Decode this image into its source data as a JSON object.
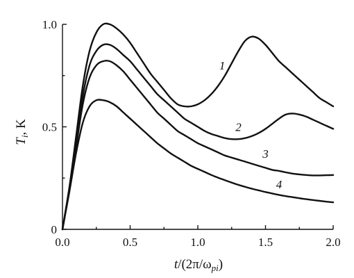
{
  "chart_data": {
    "type": "line",
    "xlabel": {
      "t": "t",
      "paren_open": "/(2π/ω",
      "sub": "pi",
      "paren_close": ")"
    },
    "ylabel": {
      "t": "T",
      "sub": "i",
      "unit": ", K"
    },
    "xlim": [
      0.0,
      2.0
    ],
    "ylim": [
      0.0,
      1.0
    ],
    "xticks": [
      0.0,
      0.5,
      1.0,
      1.5,
      2.0
    ],
    "xtick_labels": [
      "0.0",
      "0.5",
      "1.0",
      "1.5",
      "2.0"
    ],
    "yticks": [
      0.0,
      0.5,
      1.0
    ],
    "ytick_labels": [
      "0",
      "0.5",
      "1.0"
    ],
    "grid": false,
    "series": [
      {
        "name": "1",
        "label_at": [
          1.18,
          0.78
        ],
        "x": [
          0,
          0.05,
          0.1,
          0.15,
          0.2,
          0.25,
          0.3,
          0.35,
          0.4,
          0.45,
          0.5,
          0.55,
          0.6,
          0.65,
          0.7,
          0.75,
          0.8,
          0.85,
          0.9,
          0.95,
          1.0,
          1.05,
          1.1,
          1.15,
          1.2,
          1.25,
          1.3,
          1.35,
          1.4,
          1.45,
          1.5,
          1.55,
          1.6,
          1.65,
          1.7,
          1.75,
          1.8,
          1.85,
          1.9,
          1.95,
          2.0
        ],
        "y": [
          0,
          0.2,
          0.45,
          0.7,
          0.87,
          0.96,
          1.0,
          1.0,
          0.98,
          0.95,
          0.91,
          0.86,
          0.81,
          0.76,
          0.72,
          0.68,
          0.64,
          0.61,
          0.6,
          0.6,
          0.61,
          0.63,
          0.66,
          0.7,
          0.75,
          0.81,
          0.87,
          0.92,
          0.94,
          0.93,
          0.9,
          0.86,
          0.82,
          0.79,
          0.76,
          0.73,
          0.7,
          0.67,
          0.64,
          0.62,
          0.6
        ]
      },
      {
        "name": "2",
        "label_at": [
          1.3,
          0.48
        ],
        "x": [
          0,
          0.05,
          0.1,
          0.15,
          0.2,
          0.25,
          0.3,
          0.35,
          0.4,
          0.45,
          0.5,
          0.55,
          0.6,
          0.65,
          0.7,
          0.75,
          0.8,
          0.85,
          0.9,
          0.95,
          1.0,
          1.05,
          1.1,
          1.15,
          1.2,
          1.25,
          1.3,
          1.35,
          1.4,
          1.45,
          1.5,
          1.55,
          1.6,
          1.65,
          1.7,
          1.75,
          1.8,
          1.85,
          1.9,
          1.95,
          2.0
        ],
        "y": [
          0,
          0.2,
          0.42,
          0.65,
          0.8,
          0.87,
          0.9,
          0.9,
          0.88,
          0.85,
          0.82,
          0.78,
          0.74,
          0.7,
          0.66,
          0.63,
          0.6,
          0.57,
          0.54,
          0.52,
          0.5,
          0.48,
          0.465,
          0.455,
          0.445,
          0.44,
          0.44,
          0.445,
          0.455,
          0.47,
          0.49,
          0.515,
          0.54,
          0.56,
          0.565,
          0.56,
          0.55,
          0.535,
          0.52,
          0.505,
          0.49
        ]
      },
      {
        "name": "3",
        "label_at": [
          1.5,
          0.35
        ],
        "x": [
          0,
          0.05,
          0.1,
          0.15,
          0.2,
          0.25,
          0.3,
          0.35,
          0.4,
          0.45,
          0.5,
          0.55,
          0.6,
          0.65,
          0.7,
          0.75,
          0.8,
          0.85,
          0.9,
          0.95,
          1.0,
          1.05,
          1.1,
          1.15,
          1.2,
          1.25,
          1.3,
          1.35,
          1.4,
          1.45,
          1.5,
          1.55,
          1.6,
          1.65,
          1.7,
          1.75,
          1.8,
          1.85,
          1.9,
          1.95,
          2.0
        ],
        "y": [
          0,
          0.19,
          0.4,
          0.61,
          0.74,
          0.8,
          0.82,
          0.82,
          0.8,
          0.77,
          0.73,
          0.69,
          0.65,
          0.61,
          0.57,
          0.54,
          0.51,
          0.48,
          0.46,
          0.44,
          0.42,
          0.405,
          0.39,
          0.375,
          0.36,
          0.35,
          0.34,
          0.33,
          0.32,
          0.31,
          0.3,
          0.29,
          0.285,
          0.278,
          0.272,
          0.268,
          0.265,
          0.263,
          0.263,
          0.264,
          0.265
        ]
      },
      {
        "name": "4",
        "label_at": [
          1.6,
          0.2
        ],
        "x": [
          0,
          0.05,
          0.1,
          0.15,
          0.2,
          0.25,
          0.3,
          0.35,
          0.4,
          0.45,
          0.5,
          0.55,
          0.6,
          0.65,
          0.7,
          0.75,
          0.8,
          0.85,
          0.9,
          0.95,
          1.0,
          1.05,
          1.1,
          1.15,
          1.2,
          1.25,
          1.3,
          1.35,
          1.4,
          1.45,
          1.5,
          1.55,
          1.6,
          1.65,
          1.7,
          1.75,
          1.8,
          1.85,
          1.9,
          1.95,
          2.0
        ],
        "y": [
          0,
          0.18,
          0.37,
          0.52,
          0.6,
          0.63,
          0.63,
          0.62,
          0.6,
          0.57,
          0.54,
          0.51,
          0.48,
          0.45,
          0.42,
          0.395,
          0.37,
          0.35,
          0.33,
          0.31,
          0.295,
          0.28,
          0.265,
          0.252,
          0.24,
          0.228,
          0.217,
          0.207,
          0.198,
          0.19,
          0.182,
          0.175,
          0.168,
          0.162,
          0.157,
          0.152,
          0.147,
          0.143,
          0.139,
          0.135,
          0.132
        ]
      }
    ]
  }
}
